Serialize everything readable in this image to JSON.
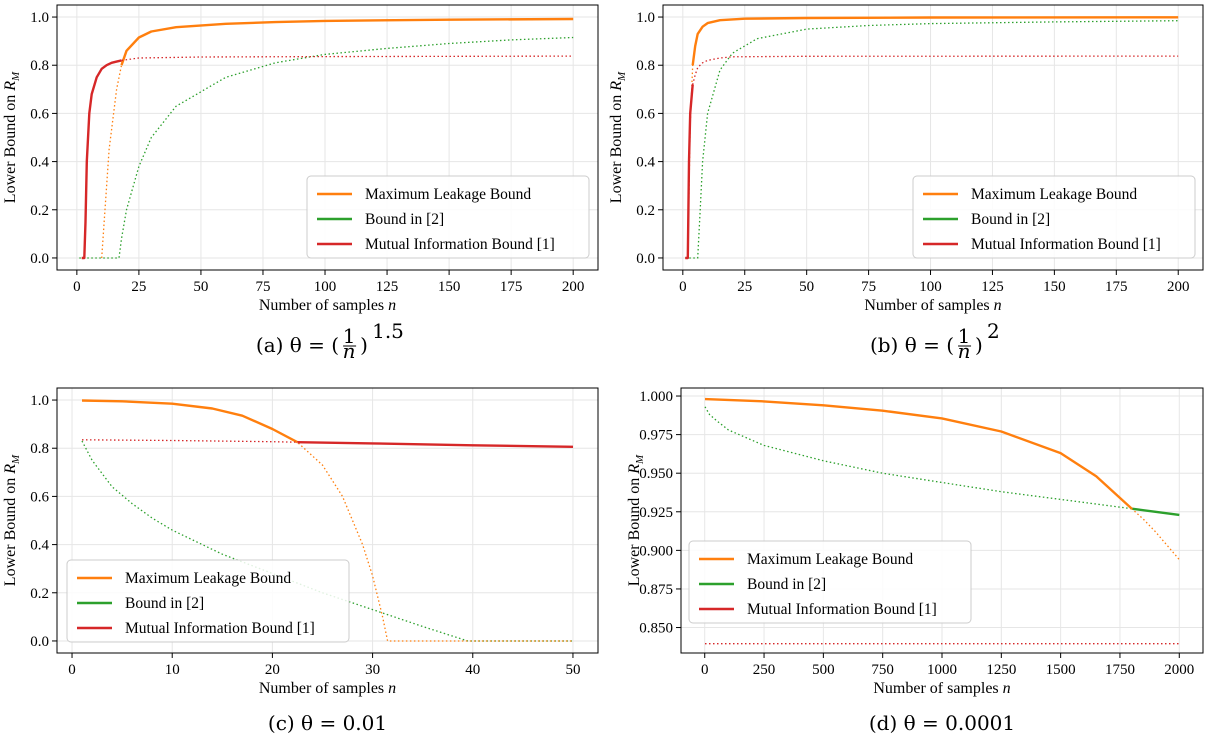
{
  "colors": {
    "orange": "#ff7f0e",
    "green": "#2ca02c",
    "red": "#d62728"
  },
  "chart_data": [
    {
      "type": "line",
      "caption": "(a) θ = (1/n)^1.5",
      "caption_parts": {
        "prefix": "(a) θ = (",
        "frac_num": "1",
        "frac_den": "n",
        "close": ")",
        "exp": "1.5"
      },
      "xlabel": "Number of samples n",
      "ylabel": "Lower Bound on R_M",
      "xlim": [
        -8,
        210
      ],
      "ylim": [
        -0.05,
        1.05
      ],
      "xticks": [
        0,
        25,
        50,
        75,
        100,
        125,
        150,
        175,
        200
      ],
      "yticks": [
        "0.0",
        "0.2",
        "0.4",
        "0.6",
        "0.8",
        "1.0"
      ],
      "legend": {
        "position": "lower right",
        "entries": [
          "Maximum Leakage Bound",
          "Bound in [2]",
          "Mutual Information Bound [1]"
        ]
      },
      "series": [
        {
          "name": "Maximum Leakage Bound",
          "color": "orange",
          "x": [
            10,
            13,
            16,
            18,
            20,
            25,
            30,
            40,
            60,
            80,
            100,
            150,
            200
          ],
          "y": [
            0.0,
            0.45,
            0.7,
            0.8,
            0.86,
            0.915,
            0.94,
            0.958,
            0.972,
            0.979,
            0.984,
            0.989,
            0.992
          ],
          "solid_from": 18
        },
        {
          "name": "Bound in [2]",
          "color": "green",
          "x": [
            1,
            17,
            18,
            20,
            25,
            30,
            40,
            60,
            80,
            100,
            125,
            150,
            175,
            200
          ],
          "y": [
            0.0,
            0.0,
            0.08,
            0.2,
            0.38,
            0.5,
            0.63,
            0.75,
            0.81,
            0.845,
            0.87,
            0.89,
            0.905,
            0.915
          ],
          "solid_from": null
        },
        {
          "name": "Mutual Information Bound [1]",
          "color": "red",
          "x": [
            2,
            3,
            3.5,
            4,
            5,
            6,
            8,
            10,
            12,
            14,
            16,
            18,
            25,
            50,
            100,
            200
          ],
          "y": [
            0.0,
            0.0,
            0.15,
            0.4,
            0.6,
            0.68,
            0.75,
            0.785,
            0.8,
            0.81,
            0.815,
            0.82,
            0.83,
            0.834,
            0.836,
            0.838
          ],
          "solid_to": 18
        }
      ]
    },
    {
      "type": "line",
      "caption": "(b) θ = (1/n)^2",
      "caption_parts": {
        "prefix": "(b) θ = (",
        "frac_num": "1",
        "frac_den": "n",
        "close": ")",
        "exp": "2"
      },
      "xlabel": "Number of samples n",
      "ylabel": "Lower Bound on R_M",
      "xlim": [
        -8,
        210
      ],
      "ylim": [
        -0.05,
        1.05
      ],
      "xticks": [
        0,
        25,
        50,
        75,
        100,
        125,
        150,
        175,
        200
      ],
      "yticks": [
        "0.0",
        "0.2",
        "0.4",
        "0.6",
        "0.8",
        "1.0"
      ],
      "legend": {
        "position": "lower right",
        "entries": [
          "Maximum Leakage Bound",
          "Bound in [2]",
          "Mutual Information Bound [1]"
        ]
      },
      "series": [
        {
          "name": "Maximum Leakage Bound",
          "color": "orange",
          "x": [
            2,
            3,
            4,
            5,
            6,
            8,
            10,
            15,
            25,
            50,
            100,
            200
          ],
          "y": [
            0.0,
            0.55,
            0.8,
            0.88,
            0.93,
            0.96,
            0.975,
            0.987,
            0.993,
            0.996,
            0.998,
            0.999
          ],
          "solid_from": 4
        },
        {
          "name": "Bound in [2]",
          "color": "green",
          "x": [
            1,
            6,
            7,
            8,
            10,
            15,
            20,
            30,
            50,
            75,
            100,
            150,
            200
          ],
          "y": [
            0.0,
            0.0,
            0.2,
            0.4,
            0.6,
            0.78,
            0.85,
            0.91,
            0.95,
            0.965,
            0.973,
            0.98,
            0.985
          ],
          "solid_from": null
        },
        {
          "name": "Mutual Information Bound [1]",
          "color": "red",
          "x": [
            1,
            2,
            2.5,
            3,
            4,
            5,
            6,
            8,
            10,
            15,
            20,
            50,
            200
          ],
          "y": [
            0.0,
            0.0,
            0.4,
            0.6,
            0.72,
            0.76,
            0.79,
            0.81,
            0.82,
            0.83,
            0.835,
            0.837,
            0.838
          ],
          "solid_to": 4
        }
      ]
    },
    {
      "type": "line",
      "caption": "(c) θ = 0.01",
      "caption_parts": {
        "prefix": "(c) θ = 0.01"
      },
      "xlabel": "Number of samples n",
      "ylabel": "Lower Bound on R_M",
      "xlim": [
        -1.5,
        52.5
      ],
      "ylim": [
        -0.05,
        1.05
      ],
      "xticks": [
        0,
        10,
        20,
        30,
        40,
        50
      ],
      "yticks": [
        "0.0",
        "0.2",
        "0.4",
        "0.6",
        "0.8",
        "1.0"
      ],
      "legend": {
        "position": "lower left",
        "entries": [
          "Maximum Leakage Bound",
          "Bound in [2]",
          "Mutual Information Bound [1]"
        ]
      },
      "series": [
        {
          "name": "Maximum Leakage Bound",
          "color": "orange",
          "x": [
            1,
            5,
            10,
            14,
            17,
            20,
            22.5,
            25,
            27,
            29,
            30,
            31,
            31.5,
            35,
            40,
            50
          ],
          "y": [
            0.998,
            0.995,
            0.985,
            0.965,
            0.935,
            0.88,
            0.825,
            0.73,
            0.6,
            0.4,
            0.27,
            0.1,
            0.0,
            0.0,
            0.0,
            0.0
          ],
          "solid_to": 22.5
        },
        {
          "name": "Bound in [2]",
          "color": "green",
          "x": [
            1,
            2,
            4,
            6,
            8,
            10,
            15,
            20,
            25,
            30,
            35,
            39.5,
            45,
            50
          ],
          "y": [
            0.83,
            0.75,
            0.64,
            0.57,
            0.51,
            0.46,
            0.36,
            0.28,
            0.2,
            0.13,
            0.06,
            0.0,
            0.0,
            0.0
          ],
          "solid_from": null
        },
        {
          "name": "Mutual Information Bound [1]",
          "color": "red",
          "x": [
            1,
            10,
            20,
            22.5,
            30,
            40,
            50
          ],
          "y": [
            0.835,
            0.832,
            0.827,
            0.825,
            0.82,
            0.812,
            0.806
          ],
          "solid_from": 22.5
        }
      ]
    },
    {
      "type": "line",
      "caption": "(d) θ = 0.0001",
      "caption_parts": {
        "prefix": "(d) θ = 0.0001"
      },
      "xlabel": "Number of samples n",
      "ylabel": "Lower Bound on R_M",
      "xlim": [
        -100,
        2100
      ],
      "ylim": [
        0.8335,
        1.0052
      ],
      "xticks": [
        0,
        250,
        500,
        750,
        1000,
        1250,
        1500,
        1750,
        2000
      ],
      "yticks": [
        "0.850",
        "0.875",
        "0.900",
        "0.925",
        "0.950",
        "0.975",
        "1.000"
      ],
      "legend": {
        "position": "center left",
        "entries": [
          "Maximum Leakage Bound",
          "Bound in [2]",
          "Mutual Information Bound [1]"
        ]
      },
      "series": [
        {
          "name": "Maximum Leakage Bound",
          "color": "orange",
          "x": [
            1,
            250,
            500,
            750,
            1000,
            1250,
            1500,
            1650,
            1800,
            1850,
            1900,
            1950,
            2000
          ],
          "y": [
            0.998,
            0.9965,
            0.994,
            0.9905,
            0.9855,
            0.977,
            0.963,
            0.948,
            0.927,
            0.92,
            0.912,
            0.903,
            0.894
          ],
          "solid_to": 1800
        },
        {
          "name": "Bound in [2]",
          "color": "green",
          "x": [
            1,
            20,
            50,
            100,
            250,
            500,
            750,
            1000,
            1250,
            1500,
            1800,
            1900,
            2000
          ],
          "y": [
            0.993,
            0.988,
            0.984,
            0.978,
            0.968,
            0.958,
            0.95,
            0.944,
            0.938,
            0.933,
            0.927,
            0.925,
            0.923
          ],
          "solid_from": 1800
        },
        {
          "name": "Mutual Information Bound [1]",
          "color": "red",
          "x": [
            1,
            500,
            1000,
            1500,
            2000
          ],
          "y": [
            0.8395,
            0.8395,
            0.8395,
            0.8395,
            0.8395
          ],
          "solid_from": null
        }
      ]
    }
  ]
}
